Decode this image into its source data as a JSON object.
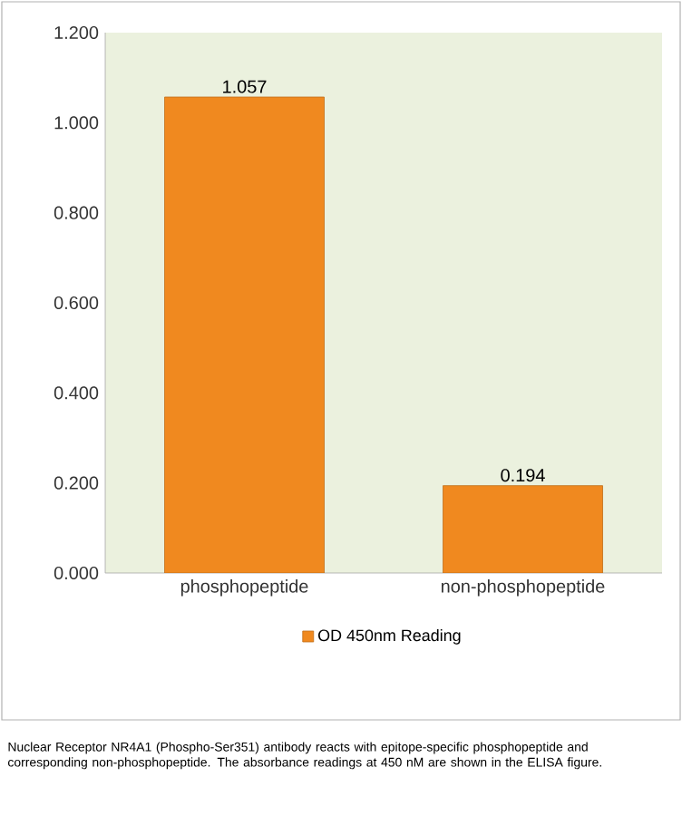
{
  "chart_data": {
    "type": "bar",
    "categories": [
      "phosphopeptide",
      "non-phosphopeptide"
    ],
    "series": [
      {
        "name": "OD 450nm Reading",
        "color": "#f0891f",
        "values": [
          1.057,
          0.194
        ],
        "value_labels": [
          "1.057",
          "0.194"
        ]
      }
    ],
    "ylim": [
      0,
      1.2
    ],
    "yticks": [
      {
        "value": 0,
        "label": "0.000"
      },
      {
        "value": 0.2,
        "label": "0.200"
      },
      {
        "value": 0.4,
        "label": "0.400"
      },
      {
        "value": 0.6,
        "label": "0.600"
      },
      {
        "value": 0.8,
        "label": "0.800"
      },
      {
        "value": 1.0,
        "label": "1.000"
      },
      {
        "value": 1.2,
        "label": "1.200"
      }
    ],
    "grid": false,
    "legend": "bottom",
    "annotations": [
      "Nuclear Receptor NR4A1 (Phospho-Ser351) antibody reacts with epitope-specific phosphopeptide and corresponding non-phosphopeptide. The absorbance readings at 450 nM are shown in the ELISA figure."
    ]
  }
}
